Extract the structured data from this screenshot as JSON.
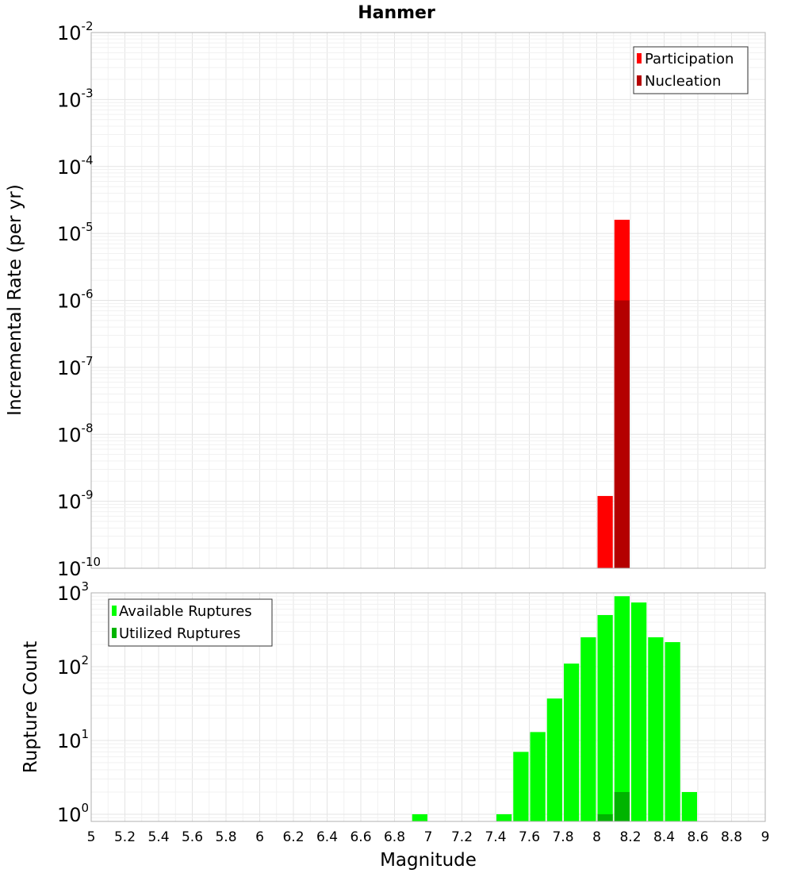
{
  "chart_data": [
    {
      "type": "bar",
      "title": "Hanmer",
      "xlabel": "",
      "ylabel": "Incremental Rate (per yr)",
      "y_scale": "log",
      "ylim": [
        1e-10,
        0.01
      ],
      "y_ticks": [
        {
          "base": "10",
          "exp": "-2"
        },
        {
          "base": "10",
          "exp": "-3"
        },
        {
          "base": "10",
          "exp": "-4"
        },
        {
          "base": "10",
          "exp": "-5"
        },
        {
          "base": "10",
          "exp": "-6"
        },
        {
          "base": "10",
          "exp": "-7"
        },
        {
          "base": "10",
          "exp": "-8"
        },
        {
          "base": "10",
          "exp": "-9"
        },
        {
          "base": "10",
          "exp": "-10"
        }
      ],
      "xlim": [
        5,
        9
      ],
      "bin_width": 0.1,
      "grid": true,
      "legend_position": "top-right",
      "series": [
        {
          "name": "Participation",
          "color": "#ff0000",
          "points": [
            {
              "x": 8.05,
              "y": 1.2e-09
            },
            {
              "x": 8.15,
              "y": 1.6e-05
            }
          ]
        },
        {
          "name": "Nucleation",
          "color": "#b40000",
          "points": [
            {
              "x": 8.15,
              "y": 1e-06
            }
          ]
        }
      ]
    },
    {
      "type": "bar",
      "title": "",
      "xlabel": "Magnitude",
      "ylabel": "Rupture Count",
      "y_scale": "log",
      "ylim": [
        0.8,
        1000
      ],
      "y_ticks": [
        {
          "base": "10",
          "exp": "3",
          "value": 1000
        },
        {
          "base": "10",
          "exp": "2",
          "value": 100
        },
        {
          "base": "10",
          "exp": "1",
          "value": 10
        },
        {
          "base": "10",
          "exp": "0",
          "value": 1
        }
      ],
      "xlim": [
        5,
        9
      ],
      "x_ticks": [
        "5",
        "5.2",
        "5.4",
        "5.6",
        "5.8",
        "6",
        "6.2",
        "6.4",
        "6.6",
        "6.8",
        "7",
        "7.2",
        "7.4",
        "7.6",
        "7.8",
        "8",
        "8.2",
        "8.4",
        "8.6",
        "8.8",
        "9"
      ],
      "bin_width": 0.1,
      "grid": true,
      "legend_position": "top-left",
      "series": [
        {
          "name": "Available Ruptures",
          "color": "#00ff00",
          "points": [
            {
              "x": 6.95,
              "y": 1
            },
            {
              "x": 7.45,
              "y": 1
            },
            {
              "x": 7.55,
              "y": 7
            },
            {
              "x": 7.65,
              "y": 13
            },
            {
              "x": 7.75,
              "y": 37
            },
            {
              "x": 7.85,
              "y": 110
            },
            {
              "x": 7.95,
              "y": 250
            },
            {
              "x": 8.05,
              "y": 500
            },
            {
              "x": 8.15,
              "y": 900
            },
            {
              "x": 8.25,
              "y": 740
            },
            {
              "x": 8.35,
              "y": 250
            },
            {
              "x": 8.45,
              "y": 215
            },
            {
              "x": 8.55,
              "y": 2
            }
          ]
        },
        {
          "name": "Utilized Ruptures",
          "color": "#00b400",
          "points": [
            {
              "x": 8.05,
              "y": 1
            },
            {
              "x": 8.15,
              "y": 2
            }
          ]
        }
      ]
    }
  ]
}
